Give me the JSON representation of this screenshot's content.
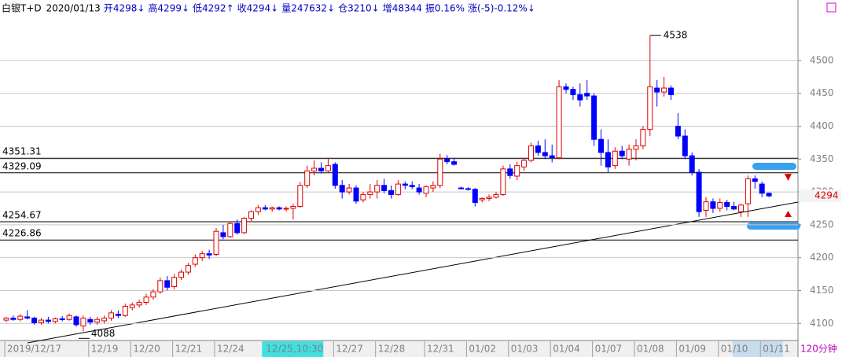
{
  "chart_data": {
    "type": "candlestick",
    "header": [
      "白银T+D",
      "2020/01/13",
      "开4298↓",
      "高4299↓",
      "低4292↑",
      "收4294↓",
      "量247632↓",
      "仓3210↓",
      "增48344",
      "振0.16%",
      "涨(-5)-0.12%↓"
    ],
    "period": "120分钟",
    "up_color": "#e00000",
    "down_color": "#0000ff",
    "ylim": [
      4074,
      4592
    ],
    "yticks": [
      4100,
      4150,
      4200,
      4250,
      4300,
      4350,
      4400,
      4450,
      4500
    ],
    "grid": true,
    "levels": [
      4351.31,
      4329.09,
      4254.67,
      4226.86
    ],
    "high_index": 92,
    "low_index": 11,
    "categories": [
      "2019/12/17",
      null,
      null,
      null,
      null,
      null,
      null,
      null,
      null,
      null,
      null,
      null,
      "12/19",
      null,
      null,
      null,
      null,
      null,
      "12/20",
      null,
      null,
      null,
      null,
      null,
      "12/21",
      null,
      null,
      null,
      null,
      null,
      "12/24",
      null,
      null,
      null,
      null,
      null,
      null,
      "12/25,10:30",
      null,
      null,
      null,
      null,
      null,
      null,
      null,
      null,
      null,
      "12/27",
      null,
      null,
      null,
      null,
      null,
      "12/28",
      null,
      null,
      null,
      null,
      null,
      null,
      "12/31",
      null,
      null,
      null,
      null,
      null,
      "01/02",
      null,
      null,
      null,
      null,
      null,
      "01/03",
      null,
      null,
      null,
      null,
      null,
      "01/04",
      null,
      null,
      null,
      null,
      null,
      "01/07",
      null,
      null,
      null,
      null,
      null,
      "01/08",
      null,
      null,
      null,
      null,
      null,
      "01/09",
      null,
      null,
      null,
      null,
      null,
      "01/10",
      null,
      null,
      null,
      null,
      null,
      "01/11",
      null
    ],
    "ohlc": [
      [
        4105,
        4110,
        4102,
        4108
      ],
      [
        4108,
        4112,
        4104,
        4106
      ],
      [
        4106,
        4114,
        4103,
        4111
      ],
      [
        4110,
        4120,
        4106,
        4108
      ],
      [
        4108,
        4110,
        4098,
        4101
      ],
      [
        4101,
        4108,
        4098,
        4105
      ],
      [
        4105,
        4110,
        4100,
        4103
      ],
      [
        4103,
        4109,
        4100,
        4107
      ],
      [
        4107,
        4111,
        4103,
        4106
      ],
      [
        4106,
        4115,
        4104,
        4112
      ],
      [
        4110,
        4112,
        4095,
        4098
      ],
      [
        4096,
        4112,
        4088,
        4108
      ],
      [
        4106,
        4110,
        4098,
        4102
      ],
      [
        4102,
        4110,
        4098,
        4106
      ],
      [
        4104,
        4112,
        4100,
        4108
      ],
      [
        4108,
        4120,
        4104,
        4116
      ],
      [
        4114,
        4120,
        4108,
        4112
      ],
      [
        4112,
        4130,
        4110,
        4126
      ],
      [
        4124,
        4132,
        4120,
        4128
      ],
      [
        4128,
        4136,
        4124,
        4132
      ],
      [
        4132,
        4145,
        4128,
        4140
      ],
      [
        4140,
        4152,
        4136,
        4148
      ],
      [
        4148,
        4170,
        4145,
        4165
      ],
      [
        4165,
        4172,
        4150,
        4155
      ],
      [
        4156,
        4175,
        4152,
        4170
      ],
      [
        4170,
        4182,
        4166,
        4178
      ],
      [
        4178,
        4192,
        4174,
        4188
      ],
      [
        4190,
        4205,
        4186,
        4200
      ],
      [
        4200,
        4210,
        4195,
        4206
      ],
      [
        4206,
        4212,
        4198,
        4204
      ],
      [
        4205,
        4245,
        4202,
        4240
      ],
      [
        4238,
        4250,
        4228,
        4232
      ],
      [
        4232,
        4255,
        4230,
        4252
      ],
      [
        4252,
        4258,
        4235,
        4238
      ],
      [
        4238,
        4262,
        4236,
        4260
      ],
      [
        4260,
        4272,
        4256,
        4270
      ],
      [
        4270,
        4280,
        4265,
        4276
      ],
      [
        4276,
        4280,
        4272,
        4274
      ],
      [
        4274,
        4278,
        4270,
        4276
      ],
      [
        4276,
        4278,
        4272,
        4274
      ],
      [
        4274,
        4278,
        4270,
        4275
      ],
      [
        4275,
        4282,
        4258,
        4278
      ],
      [
        4278,
        4315,
        4276,
        4310
      ],
      [
        4310,
        4340,
        4306,
        4332
      ],
      [
        4332,
        4348,
        4325,
        4336
      ],
      [
        4336,
        4345,
        4328,
        4332
      ],
      [
        4332,
        4352,
        4330,
        4340
      ],
      [
        4342,
        4345,
        4305,
        4310
      ],
      [
        4310,
        4318,
        4290,
        4300
      ],
      [
        4300,
        4312,
        4296,
        4306
      ],
      [
        4306,
        4310,
        4282,
        4286
      ],
      [
        4288,
        4300,
        4284,
        4296
      ],
      [
        4296,
        4312,
        4290,
        4300
      ],
      [
        4300,
        4318,
        4290,
        4310
      ],
      [
        4310,
        4320,
        4298,
        4302
      ],
      [
        4302,
        4310,
        4290,
        4296
      ],
      [
        4296,
        4318,
        4294,
        4312
      ],
      [
        4312,
        4316,
        4304,
        4310
      ],
      [
        4310,
        4316,
        4304,
        4308
      ],
      [
        4306,
        4312,
        4296,
        4300
      ],
      [
        4298,
        4310,
        4292,
        4308
      ],
      [
        4306,
        4316,
        4300,
        4310
      ],
      [
        4310,
        4358,
        4306,
        4350
      ],
      [
        4350,
        4356,
        4342,
        4346
      ],
      [
        4346,
        4352,
        4340,
        4342
      ],
      [
        4306,
        4308,
        4304,
        4305
      ],
      [
        4305,
        4307,
        4302,
        4304
      ],
      [
        4304,
        4306,
        4278,
        4284
      ],
      [
        4288,
        4292,
        4284,
        4290
      ],
      [
        4290,
        4296,
        4286,
        4292
      ],
      [
        4292,
        4300,
        4290,
        4296
      ],
      [
        4296,
        4340,
        4294,
        4335
      ],
      [
        4335,
        4342,
        4320,
        4325
      ],
      [
        4324,
        4346,
        4318,
        4340
      ],
      [
        4338,
        4352,
        4332,
        4348
      ],
      [
        4348,
        4375,
        4345,
        4370
      ],
      [
        4370,
        4378,
        4355,
        4360
      ],
      [
        4360,
        4380,
        4350,
        4355
      ],
      [
        4355,
        4372,
        4345,
        4352
      ],
      [
        4352,
        4470,
        4350,
        4460
      ],
      [
        4460,
        4465,
        4450,
        4456
      ],
      [
        4456,
        4460,
        4440,
        4448
      ],
      [
        4448,
        4465,
        4430,
        4440
      ],
      [
        4450,
        4470,
        4440,
        4446
      ],
      [
        4446,
        4450,
        4370,
        4380
      ],
      [
        4380,
        4395,
        4340,
        4360
      ],
      [
        4360,
        4380,
        4330,
        4338
      ],
      [
        4340,
        4368,
        4335,
        4362
      ],
      [
        4362,
        4370,
        4350,
        4355
      ],
      [
        4350,
        4372,
        4340,
        4365
      ],
      [
        4365,
        4380,
        4348,
        4370
      ],
      [
        4370,
        4400,
        4365,
        4395
      ],
      [
        4395,
        4538,
        4385,
        4460
      ],
      [
        4458,
        4470,
        4430,
        4452
      ],
      [
        4452,
        4475,
        4445,
        4458
      ],
      [
        4458,
        4462,
        4440,
        4448
      ],
      [
        4400,
        4420,
        4380,
        4385
      ],
      [
        4385,
        4395,
        4350,
        4355
      ],
      [
        4355,
        4360,
        4325,
        4330
      ],
      [
        4330,
        4335,
        4262,
        4270
      ],
      [
        4272,
        4292,
        4262,
        4285
      ],
      [
        4285,
        4290,
        4268,
        4275
      ],
      [
        4275,
        4290,
        4270,
        4284
      ],
      [
        4284,
        4288,
        4272,
        4278
      ],
      [
        4278,
        4285,
        4272,
        4274
      ],
      [
        4270,
        4282,
        4262,
        4280
      ],
      [
        4282,
        4325,
        4262,
        4320
      ],
      [
        4320,
        4325,
        4305,
        4316
      ],
      [
        4312,
        4316,
        4292,
        4298
      ],
      [
        4298,
        4299,
        4292,
        4294
      ]
    ]
  }
}
